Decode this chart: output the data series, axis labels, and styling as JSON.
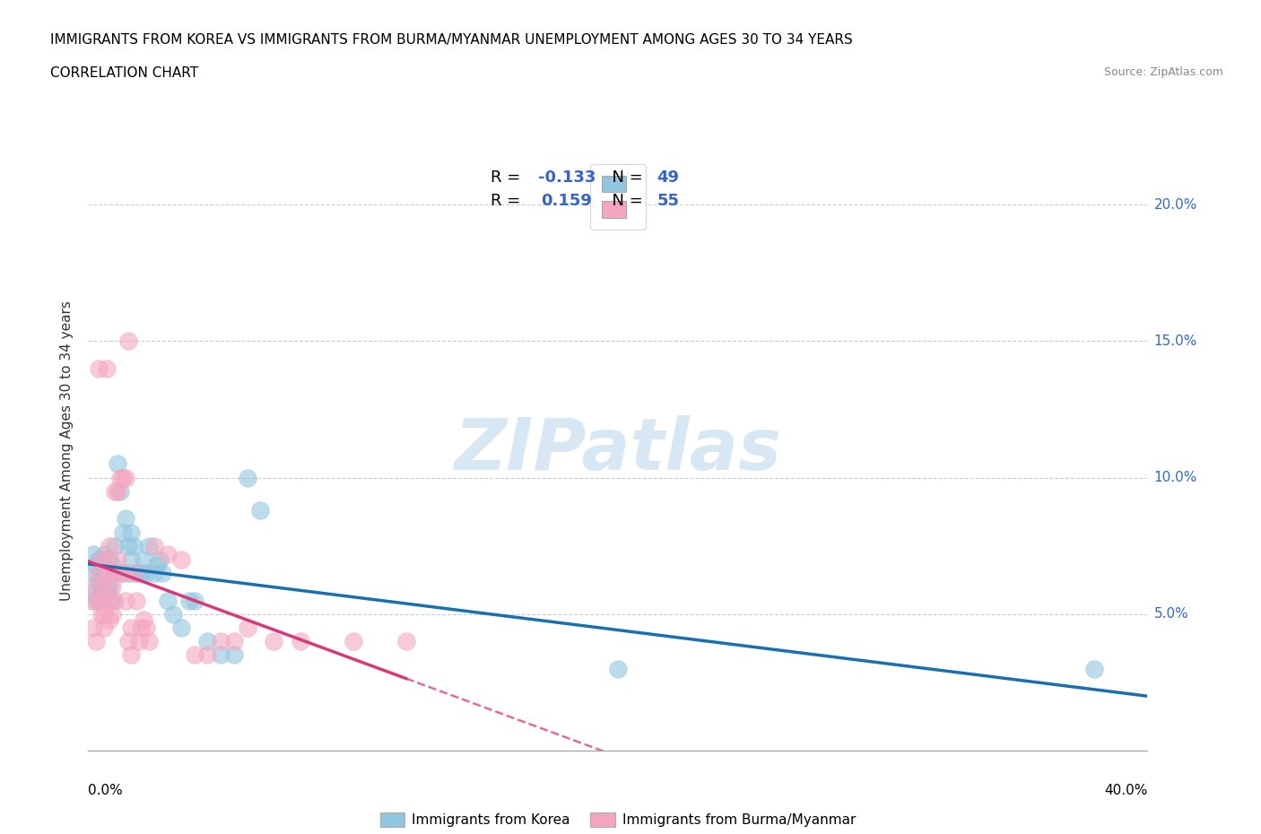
{
  "title_line1": "IMMIGRANTS FROM KOREA VS IMMIGRANTS FROM BURMA/MYANMAR UNEMPLOYMENT AMONG AGES 30 TO 34 YEARS",
  "title_line2": "CORRELATION CHART",
  "source": "Source: ZipAtlas.com",
  "ylabel": "Unemployment Among Ages 30 to 34 years",
  "legend_korea_r": "R = ",
  "legend_korea_rv": "-0.133",
  "legend_korea_n": "  N = ",
  "legend_korea_nv": "49",
  "legend_burma_r": "R =  ",
  "legend_burma_rv": "0.159",
  "legend_burma_n": "  N = ",
  "legend_burma_nv": "55",
  "legend_label_korea": "Immigrants from Korea",
  "legend_label_burma": "Immigrants from Burma/Myanmar",
  "color_korea": "#92c5de",
  "color_burma": "#f4a6c0",
  "color_trend_korea": "#1a6faf",
  "color_trend_burma": "#d63a7a",
  "color_yticklabel": "#3366cc",
  "watermark": "ZIPatlas",
  "xlim": [
    0.0,
    0.4
  ],
  "ylim": [
    0.0,
    0.22
  ],
  "yticks": [
    0.0,
    0.05,
    0.1,
    0.15,
    0.2
  ],
  "ytick_labels": [
    "",
    "5.0%",
    "10.0%",
    "15.0%",
    "20.0%"
  ],
  "xticks": [
    0.0,
    0.05,
    0.1,
    0.15,
    0.2,
    0.25,
    0.3,
    0.35,
    0.4
  ],
  "korea_x": [
    0.001,
    0.002,
    0.002,
    0.003,
    0.003,
    0.004,
    0.004,
    0.005,
    0.005,
    0.006,
    0.006,
    0.007,
    0.007,
    0.008,
    0.008,
    0.009,
    0.009,
    0.01,
    0.01,
    0.011,
    0.012,
    0.013,
    0.014,
    0.015,
    0.015,
    0.016,
    0.016,
    0.017,
    0.018,
    0.02,
    0.021,
    0.022,
    0.023,
    0.025,
    0.026,
    0.027,
    0.028,
    0.03,
    0.032,
    0.035,
    0.038,
    0.04,
    0.045,
    0.05,
    0.055,
    0.06,
    0.065,
    0.2,
    0.38
  ],
  "korea_y": [
    0.065,
    0.058,
    0.072,
    0.055,
    0.068,
    0.062,
    0.07,
    0.06,
    0.058,
    0.072,
    0.065,
    0.06,
    0.058,
    0.07,
    0.06,
    0.055,
    0.068,
    0.075,
    0.065,
    0.105,
    0.095,
    0.08,
    0.085,
    0.075,
    0.065,
    0.07,
    0.08,
    0.075,
    0.065,
    0.065,
    0.07,
    0.065,
    0.075,
    0.065,
    0.068,
    0.07,
    0.065,
    0.055,
    0.05,
    0.045,
    0.055,
    0.055,
    0.04,
    0.035,
    0.035,
    0.1,
    0.088,
    0.03,
    0.03
  ],
  "burma_x": [
    0.001,
    0.002,
    0.003,
    0.003,
    0.004,
    0.004,
    0.004,
    0.005,
    0.005,
    0.005,
    0.006,
    0.006,
    0.006,
    0.007,
    0.007,
    0.007,
    0.008,
    0.008,
    0.008,
    0.009,
    0.009,
    0.01,
    0.01,
    0.01,
    0.011,
    0.011,
    0.012,
    0.012,
    0.013,
    0.013,
    0.014,
    0.014,
    0.015,
    0.015,
    0.016,
    0.016,
    0.017,
    0.018,
    0.019,
    0.02,
    0.021,
    0.022,
    0.023,
    0.025,
    0.03,
    0.035,
    0.04,
    0.045,
    0.05,
    0.055,
    0.06,
    0.07,
    0.08,
    0.1,
    0.12
  ],
  "burma_y": [
    0.055,
    0.045,
    0.04,
    0.06,
    0.055,
    0.065,
    0.14,
    0.05,
    0.055,
    0.07,
    0.045,
    0.05,
    0.06,
    0.065,
    0.07,
    0.14,
    0.048,
    0.055,
    0.075,
    0.05,
    0.06,
    0.055,
    0.065,
    0.095,
    0.07,
    0.095,
    0.065,
    0.1,
    0.065,
    0.1,
    0.055,
    0.1,
    0.04,
    0.15,
    0.035,
    0.045,
    0.065,
    0.055,
    0.04,
    0.045,
    0.048,
    0.045,
    0.04,
    0.075,
    0.072,
    0.07,
    0.035,
    0.035,
    0.04,
    0.04,
    0.045,
    0.04,
    0.04,
    0.04,
    0.04
  ]
}
